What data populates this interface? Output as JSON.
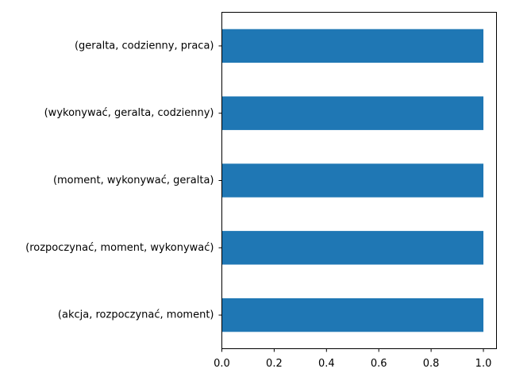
{
  "chart_data": {
    "type": "bar",
    "orientation": "horizontal",
    "categories": [
      "(geralta, codzienny, praca)",
      "(wykonywać, geralta, codzienny)",
      "(moment, wykonywać, geralta)",
      "(rozpoczynać, moment, wykonywać)",
      "(akcja, rozpoczynać, moment)"
    ],
    "values": [
      1.0,
      1.0,
      1.0,
      1.0,
      1.0
    ],
    "xlim": [
      0.0,
      1.05
    ],
    "xticks": [
      "0.0",
      "0.2",
      "0.4",
      "0.6",
      "0.8",
      "1.0"
    ],
    "title": "",
    "xlabel": "",
    "ylabel": "",
    "grid": false,
    "bar_color": "#1f77b4"
  }
}
